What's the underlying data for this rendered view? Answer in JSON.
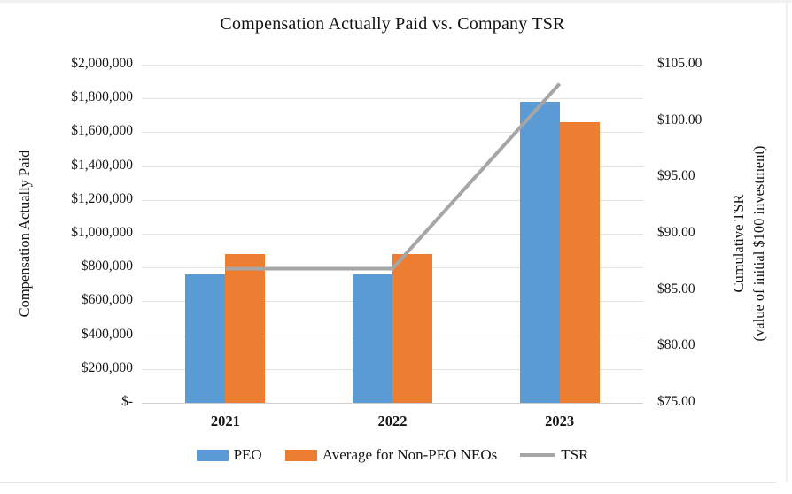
{
  "chart_data": {
    "type": "bar",
    "title": "Compensation Actually Paid vs. Company TSR",
    "categories": [
      "2021",
      "2022",
      "2023"
    ],
    "series": [
      {
        "name": "PEO",
        "kind": "bar",
        "axis": "left",
        "color": "#5B9BD5",
        "values": [
          760000,
          760000,
          1780000
        ]
      },
      {
        "name": "Average for Non-PEO NEOs",
        "kind": "bar",
        "axis": "left",
        "color": "#ED7D31",
        "values": [
          880000,
          880000,
          1660000
        ]
      },
      {
        "name": "TSR",
        "kind": "line",
        "axis": "right",
        "color": "#A6A6A6",
        "values": [
          86.9,
          86.9,
          103.3
        ]
      }
    ],
    "left_axis": {
      "title": "Compensation Actually Paid",
      "min": 0,
      "max": 2000000,
      "tick_labels": [
        "$2,000,000",
        "$1,800,000",
        "$1,600,000",
        "$1,400,000",
        "$1,200,000",
        "$1,000,000",
        "$800,000",
        "$600,000",
        "$400,000",
        "$200,000",
        "$-"
      ]
    },
    "right_axis": {
      "title_line1": "Cumulative TSR",
      "title_line2": "(value of initial $100 investment)",
      "min": 75,
      "max": 105,
      "tick_labels": [
        "$105.00",
        "$100.00",
        "$95.00",
        "$90.00",
        "$85.00",
        "$80.00",
        "$75.00"
      ]
    },
    "legend_position": "bottom",
    "grid": true,
    "colors": {
      "gridline": "#e2e2e2",
      "baseline": "#cfcfcf",
      "text": "#141414"
    }
  }
}
